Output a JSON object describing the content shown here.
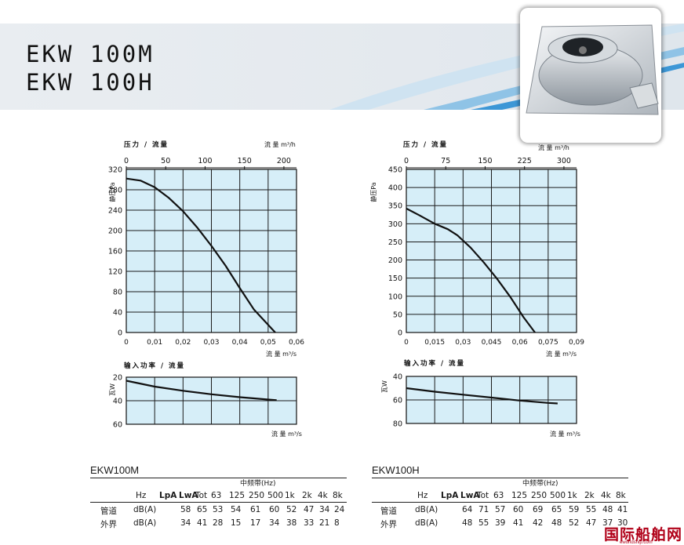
{
  "header": {
    "title_line1": "EKW 100M",
    "title_line2": "EKW 100H",
    "photo_icon": "inline-duct-fan-photo"
  },
  "chart_data": [
    {
      "id": "ekw100m-pressure",
      "type": "line",
      "title": "压力 / 流量",
      "ylabel": "静压Pa",
      "xlabel": "流 量 m³/s",
      "x2label": "流 量 m³/h",
      "xlim": [
        0,
        0.06
      ],
      "ylim": [
        0,
        320
      ],
      "x2lim": [
        0,
        216
      ],
      "x_ticks": [
        "0",
        "0,01",
        "0,02",
        "0,03",
        "0,04",
        "0,05",
        "0,06"
      ],
      "y_ticks": [
        "0",
        "40",
        "80",
        "120",
        "160",
        "200",
        "240",
        "280",
        "320"
      ],
      "x2_ticks": [
        "0",
        "50",
        "100",
        "150",
        "200"
      ],
      "grid": true,
      "series": [
        {
          "x": [
            0,
            0.005,
            0.01,
            0.015,
            0.02,
            0.025,
            0.03,
            0.035,
            0.04,
            0.045,
            0.0525
          ],
          "y": [
            302,
            298,
            285,
            264,
            238,
            206,
            170,
            131,
            87,
            45,
            0
          ]
        }
      ]
    },
    {
      "id": "ekw100m-power",
      "type": "line",
      "title": "输入功率 / 流量",
      "ylabel": "瓦W",
      "xlabel": "流 量 m³/s",
      "xlim": [
        0,
        0.06
      ],
      "ylim": [
        20,
        60
      ],
      "y_inverted": true,
      "y_ticks": [
        "20",
        "40",
        "60"
      ],
      "grid": true,
      "series": [
        {
          "x": [
            0,
            0.01,
            0.02,
            0.03,
            0.04,
            0.05,
            0.053
          ],
          "y": [
            23,
            28,
            31.5,
            34.5,
            37,
            39,
            39.5
          ]
        }
      ]
    },
    {
      "id": "ekw100h-pressure",
      "type": "line",
      "title": "压力 / 流量",
      "ylabel": "静压Pa",
      "xlabel": "流 量 m³/s",
      "x2label": "流 量 m³/h",
      "xlim": [
        0,
        0.09
      ],
      "ylim": [
        0,
        450
      ],
      "x2lim": [
        0,
        324
      ],
      "x_ticks": [
        "0",
        "0,015",
        "0,03",
        "0,045",
        "0,06",
        "0,075",
        "0,09"
      ],
      "y_ticks": [
        "0",
        "50",
        "100",
        "150",
        "200",
        "250",
        "300",
        "350",
        "400",
        "450"
      ],
      "x2_ticks": [
        "0",
        "75",
        "150",
        "225",
        "300"
      ],
      "grid": true,
      "series": [
        {
          "x": [
            0,
            0.007,
            0.015,
            0.022,
            0.027,
            0.034,
            0.041,
            0.048,
            0.055,
            0.062,
            0.068
          ],
          "y": [
            342,
            323,
            300,
            285,
            268,
            234,
            193,
            148,
            98,
            42,
            0
          ]
        }
      ]
    },
    {
      "id": "ekw100h-power",
      "type": "line",
      "title": "输入功率 / 流量",
      "ylabel": "瓦W",
      "xlabel": "流 量 m³/s",
      "xlim": [
        0,
        0.09
      ],
      "ylim": [
        40,
        80
      ],
      "y_inverted": true,
      "y_ticks": [
        "40",
        "60",
        "80"
      ],
      "grid": true,
      "series": [
        {
          "x": [
            0,
            0.015,
            0.03,
            0.045,
            0.06,
            0.075,
            0.08
          ],
          "y": [
            50,
            53,
            55.5,
            58,
            60.5,
            62.5,
            63
          ]
        }
      ]
    }
  ],
  "tables": [
    {
      "model": "EKW100M",
      "band": "中频带(Hz)",
      "headers": [
        "Hz",
        "LpA",
        "LwA",
        "Tot",
        "63",
        "125",
        "250",
        "500",
        "1k",
        "2k",
        "4k",
        "8k"
      ],
      "rows": [
        {
          "label": "管道",
          "cells": [
            "dB(A)",
            "58",
            "65",
            "53",
            "54",
            "61",
            "60",
            "52",
            "47",
            "34",
            "24"
          ]
        },
        {
          "label": "外界",
          "cells": [
            "dB(A)",
            "34",
            "41",
            "28",
            "15",
            "17",
            "34",
            "38",
            "33",
            "21",
            "8"
          ]
        }
      ]
    },
    {
      "model": "EKW100H",
      "band": "中频带(Hz)",
      "headers": [
        "Hz",
        "LpA",
        "LwA",
        "Tot",
        "63",
        "125",
        "250",
        "500",
        "1k",
        "2k",
        "4k",
        "8k"
      ],
      "rows": [
        {
          "label": "管道",
          "cells": [
            "dB(A)",
            "64",
            "71",
            "57",
            "60",
            "69",
            "65",
            "59",
            "55",
            "48",
            "41"
          ]
        },
        {
          "label": "外界",
          "cells": [
            "dB(A)",
            "48",
            "55",
            "39",
            "41",
            "42",
            "48",
            "52",
            "47",
            "37",
            "30"
          ]
        }
      ]
    }
  ],
  "watermark": {
    "cn": "国际船舶网",
    "url": "eworldship.com"
  },
  "colors": {
    "plot_bg": "#d6eef8",
    "grid": "#1b1b1b",
    "curve": "#111111",
    "watermark": "#b00018"
  }
}
